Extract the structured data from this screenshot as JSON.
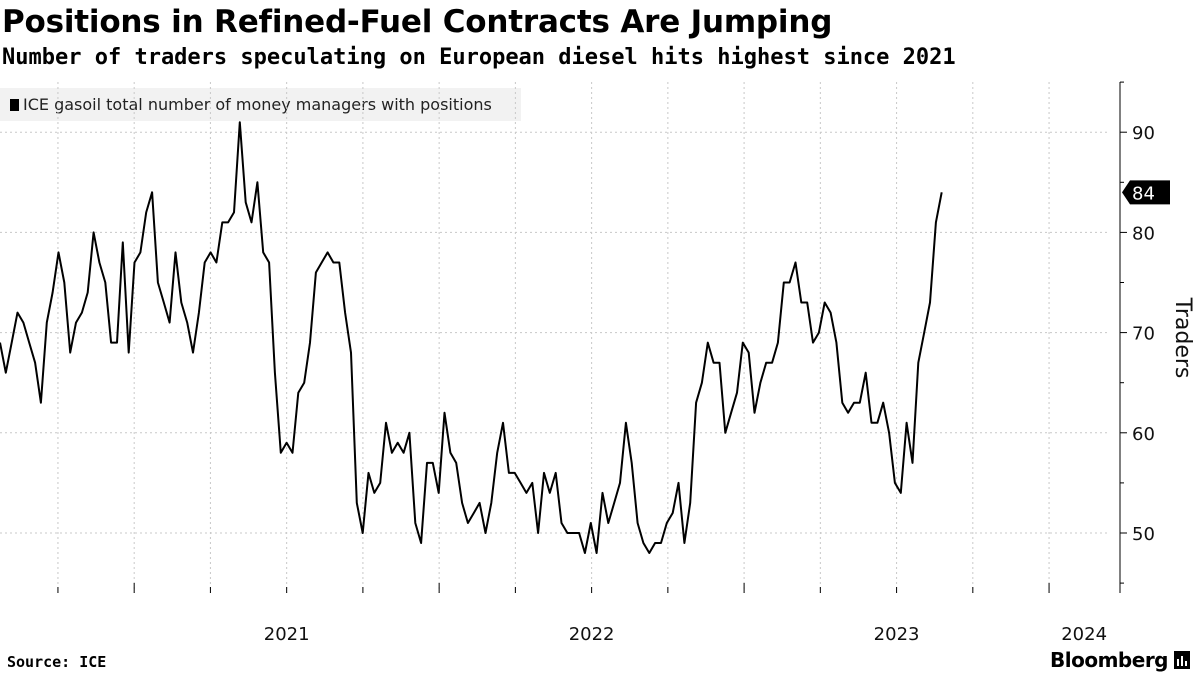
{
  "header": {
    "title": "Positions in Refined-Fuel Contracts Are Jumping",
    "subtitle": "Number of traders speculating on European diesel hits highest since 2021"
  },
  "footer": {
    "source": "Source: ICE",
    "brand": "Bloomberg"
  },
  "colors": {
    "line": "#000000",
    "grid": "#c8c8c8",
    "legend_bg": "#f2f2f2",
    "badge": "#000000"
  },
  "chart_data": {
    "type": "line",
    "title": "Positions in Refined-Fuel Contracts Are Jumping",
    "subtitle": "Number of traders speculating on European diesel hits highest since 2021",
    "xlabel": "",
    "ylabel": "Traders",
    "ylim": [
      45,
      95
    ],
    "y_ticks": [
      50,
      60,
      70,
      80,
      90
    ],
    "x_tick_labels": [
      "2021",
      "2022",
      "2023",
      "2024"
    ],
    "x_range": [
      2020.56,
      2024.19
    ],
    "legend_placement": "top-left",
    "grid": true,
    "last_value_label": "84",
    "series": [
      {
        "name": "ICE gasoil total number of money managers with positions",
        "start": 2020.56,
        "step_weeks": 1,
        "values": [
          69,
          66,
          69,
          72,
          71,
          69,
          67,
          63,
          71,
          74,
          78,
          75,
          68,
          71,
          72,
          74,
          80,
          77,
          75,
          69,
          69,
          79,
          68,
          77,
          78,
          82,
          84,
          75,
          73,
          71,
          78,
          73,
          71,
          68,
          72,
          77,
          78,
          77,
          81,
          81,
          82,
          91,
          83,
          81,
          85,
          78,
          77,
          66,
          58,
          59,
          58,
          64,
          65,
          69,
          76,
          77,
          78,
          77,
          77,
          72,
          68,
          53,
          50,
          56,
          54,
          55,
          61,
          58,
          59,
          58,
          60,
          51,
          49,
          57,
          57,
          54,
          62,
          58,
          57,
          53,
          51,
          52,
          53,
          50,
          53,
          58,
          61,
          56,
          56,
          55,
          54,
          55,
          50,
          56,
          54,
          56,
          51,
          50,
          50,
          50,
          48,
          51,
          48,
          54,
          51,
          53,
          55,
          61,
          57,
          51,
          49,
          48,
          49,
          49,
          51,
          52,
          55,
          49,
          53,
          63,
          65,
          69,
          67,
          67,
          60,
          62,
          64,
          69,
          68,
          62,
          65,
          67,
          67,
          69,
          75,
          75,
          77,
          73,
          73,
          69,
          70,
          73,
          72,
          69,
          63,
          62,
          63,
          63,
          66,
          61,
          61,
          63,
          60,
          55,
          54,
          61,
          57,
          67,
          70,
          73,
          81,
          84
        ]
      }
    ]
  }
}
